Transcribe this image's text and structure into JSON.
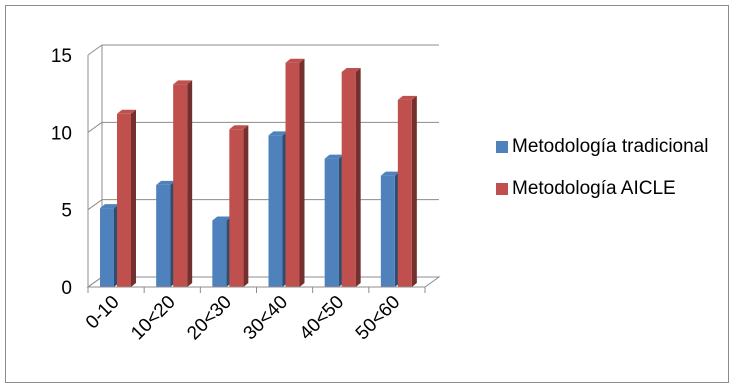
{
  "chart_data": {
    "type": "bar",
    "categories": [
      "0-10",
      "10<20",
      "20<30",
      "30<40",
      "40<50",
      "50<60"
    ],
    "series": [
      {
        "name": "Metodología tradicional",
        "values": [
          5.1,
          6.6,
          4.3,
          9.8,
          8.3,
          7.2
        ],
        "color": "#4f81bd"
      },
      {
        "name": "Metodología AICLE",
        "values": [
          11.2,
          13.1,
          10.2,
          14.5,
          13.9,
          12.1
        ],
        "color": "#c0504d"
      }
    ],
    "title": "",
    "xlabel": "",
    "ylabel": "",
    "ylim": [
      0,
      15
    ],
    "yticks": [
      "0",
      "5",
      "10",
      "15"
    ],
    "grid": true,
    "legend_position": "right",
    "style": "3d-clustered-column"
  }
}
